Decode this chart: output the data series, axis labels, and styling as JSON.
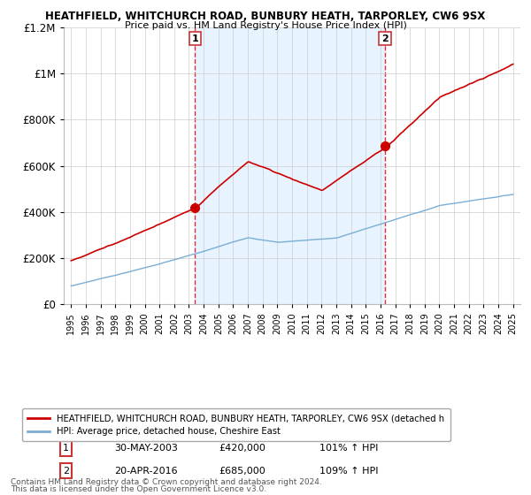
{
  "title": "HEATHFIELD, WHITCHURCH ROAD, BUNBURY HEATH, TARPORLEY, CW6 9SX",
  "subtitle": "Price paid vs. HM Land Registry's House Price Index (HPI)",
  "legend_line1": "HEATHFIELD, WHITCHURCH ROAD, BUNBURY HEATH, TARPORLEY, CW6 9SX (detached h",
  "legend_line2": "HPI: Average price, detached house, Cheshire East",
  "sale1_label": "1",
  "sale1_date": "30-MAY-2003",
  "sale1_price": "£420,000",
  "sale1_hpi": "101% ↑ HPI",
  "sale1_year": 2003.41,
  "sale1_value": 420000,
  "sale2_label": "2",
  "sale2_date": "20-APR-2016",
  "sale2_price": "£685,000",
  "sale2_hpi": "109% ↑ HPI",
  "sale2_year": 2016.3,
  "sale2_value": 685000,
  "footnote1": "Contains HM Land Registry data © Crown copyright and database right 2024.",
  "footnote2": "This data is licensed under the Open Government Licence v3.0.",
  "ylim": [
    0,
    1200000
  ],
  "xlim": [
    1994.5,
    2025.5
  ],
  "red_color": "#cc0000",
  "blue_color": "#7aaed6",
  "shade_color": "#ddeeff",
  "bg_color": "#ffffff",
  "grid_color": "#cccccc"
}
